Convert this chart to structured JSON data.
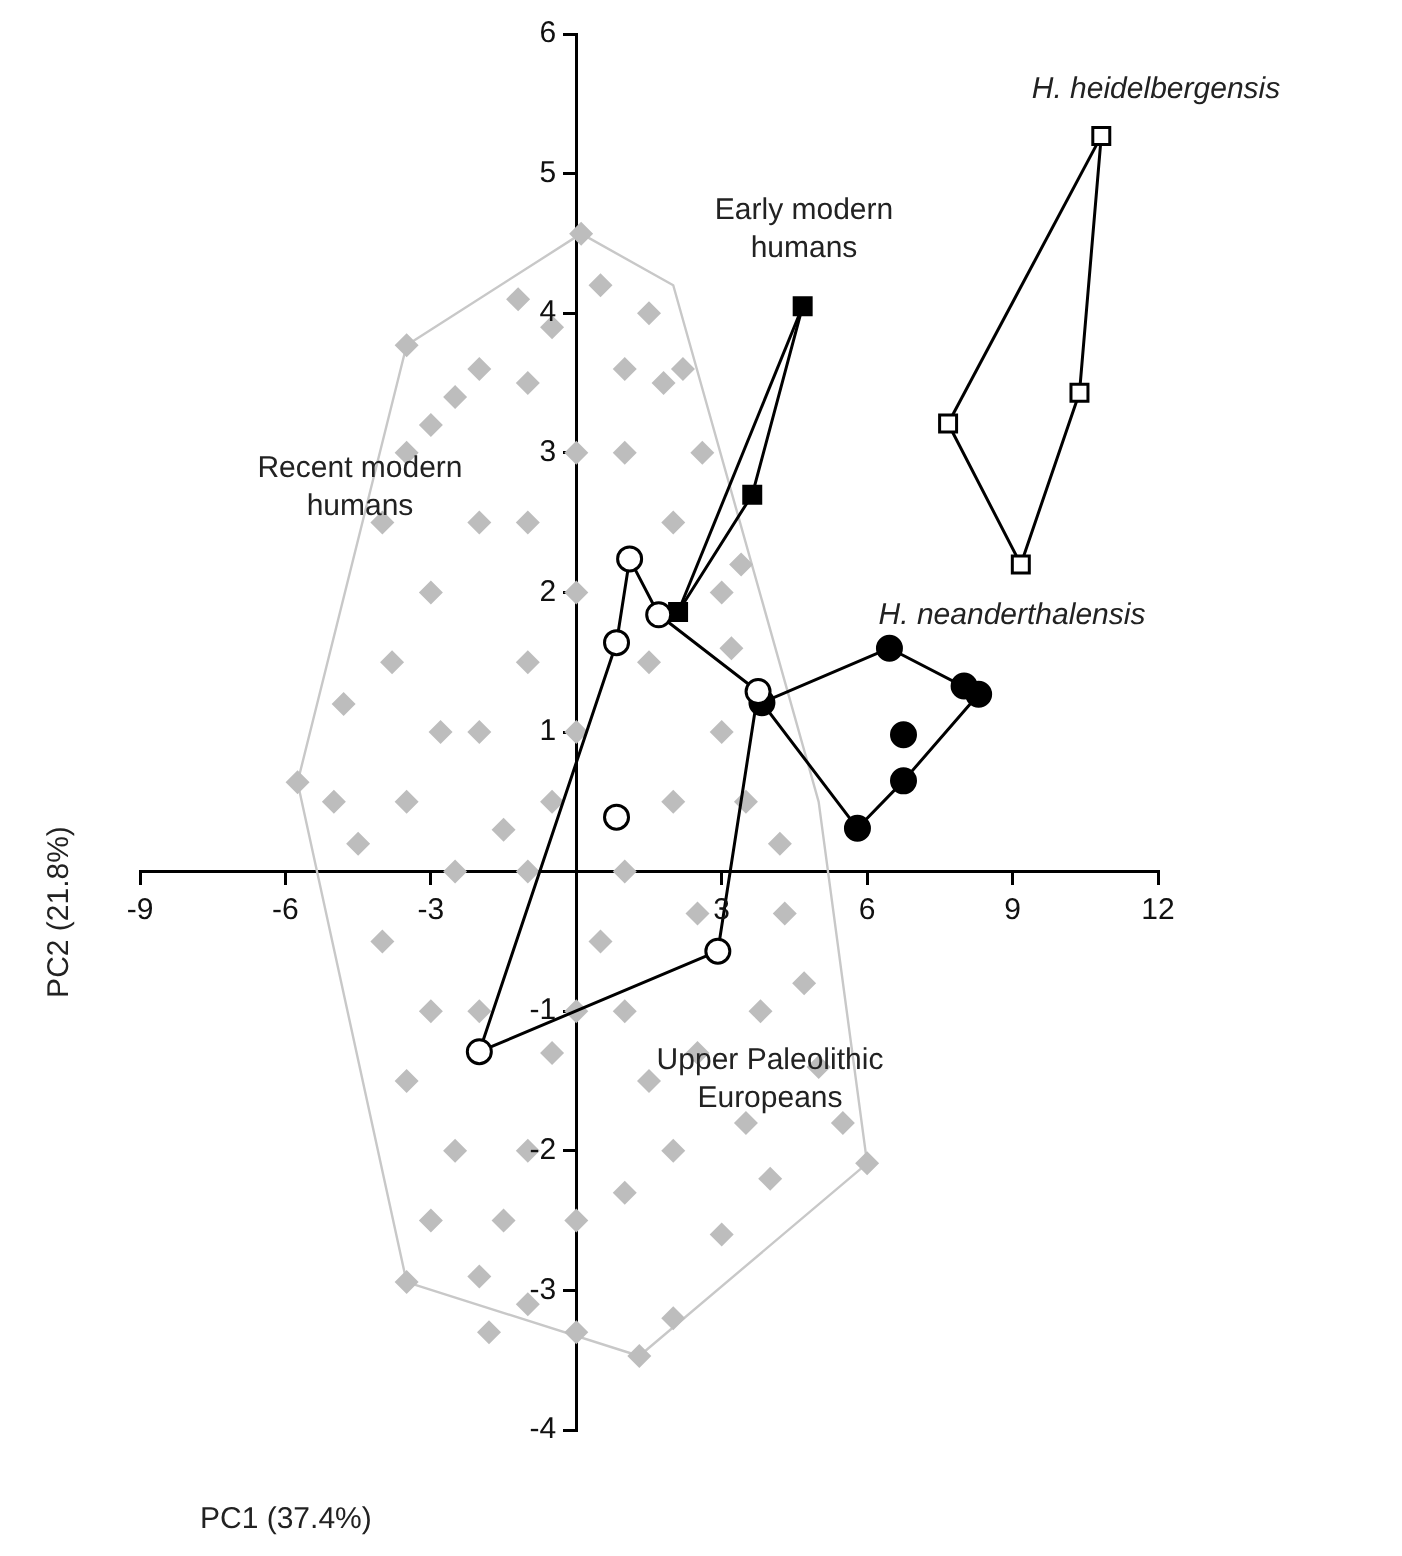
{
  "chart_data": {
    "type": "scatter",
    "xlabel": "PC1 (37.4%)",
    "ylabel": "PC2 (21.8%)",
    "xlim": [
      -9,
      12
    ],
    "xticks": [
      -9,
      -6,
      -3,
      3,
      6,
      9,
      12
    ],
    "ylim": [
      -4,
      6
    ],
    "yticks": [
      -4,
      -3,
      -2,
      -1,
      1,
      2,
      3,
      4,
      5,
      6
    ],
    "grid": false,
    "legend": false,
    "series": [
      {
        "type": "line",
        "color": "#c8c8c8",
        "x": [
          -5.75,
          -3.5,
          0.1,
          2,
          5,
          6
        ],
        "values": [
          0.64,
          3.77,
          4.57,
          4.2,
          0.5,
          -2.09
        ]
      },
      {
        "type": "line",
        "color": "#c8c8c8",
        "x": [
          -5.75,
          -3.5,
          1.3,
          6
        ],
        "values": [
          0.64,
          -2.94,
          -3.47,
          -2.09
        ]
      },
      {
        "type": "scatter",
        "color": "#bdbdbd",
        "marker": "diamond",
        "x": [
          0.1,
          -3.5,
          -5.75,
          -3.5,
          1.3,
          6,
          -1.2,
          -2.5,
          -2,
          -3,
          1.5,
          2.2,
          2.6,
          3.4,
          3.5,
          4.3,
          4.7,
          5,
          5.5,
          4,
          3,
          2,
          0,
          -1,
          -2,
          -3,
          -2.5,
          -3.5,
          -4,
          -4.5,
          -5,
          -3.5,
          -3.8,
          -4,
          -3,
          -2,
          -1,
          -2,
          -1,
          0,
          1,
          2,
          1,
          2,
          3,
          0,
          -1,
          -2,
          -1,
          0,
          1,
          0,
          -1,
          1,
          2,
          3,
          -2.5,
          -3,
          0,
          1,
          2.5,
          3.5,
          -1.5,
          -0.5,
          0.5,
          1.5,
          2.5,
          -3.5,
          -2.8,
          -1.5,
          -0.5,
          1.5,
          3.8,
          4.2,
          -4.8,
          0.5,
          -0.5,
          1.8,
          3.2,
          -1.8
        ],
        "values": [
          4.57,
          3.77,
          0.64,
          -2.94,
          -3.47,
          -2.09,
          4.1,
          3.4,
          3.6,
          3.2,
          4.0,
          3.6,
          3.0,
          2.2,
          0.5,
          -0.3,
          -0.8,
          -1.4,
          -1.8,
          -2.2,
          -2.6,
          -3.2,
          -3.3,
          -3.1,
          -2.9,
          -2.5,
          -2.0,
          -1.5,
          -0.5,
          0.2,
          0.5,
          0.5,
          1.5,
          2.5,
          2,
          1,
          0,
          -1,
          -2,
          -1,
          -1,
          -2,
          0,
          0.5,
          1,
          1,
          1.5,
          2.5,
          2.5,
          2,
          3,
          3,
          3.5,
          3.6,
          2.5,
          2.0,
          0,
          -1,
          -2.5,
          -2.3,
          -1.3,
          -1.8,
          -2.5,
          0.5,
          -0.5,
          1.5,
          -0.3,
          3.0,
          1.0,
          0.3,
          -1.3,
          -1.5,
          -1.0,
          0.2,
          1.2,
          4.2,
          3.9,
          3.5,
          1.6,
          -3.3
        ]
      },
      {
        "type": "line",
        "color": "#000000",
        "x": [
          -2,
          0.83,
          1.1,
          1.7,
          3.75
        ],
        "values": [
          -1.29,
          1.64,
          2.24,
          1.84,
          1.29
        ]
      },
      {
        "type": "line",
        "color": "#000000",
        "x": [
          -2,
          2.92,
          3.75
        ],
        "values": [
          -1.29,
          -0.57,
          1.29
        ]
      },
      {
        "type": "line",
        "color": "#000000",
        "x": [
          2.1,
          4.67
        ],
        "values": [
          1.86,
          4.05
        ]
      },
      {
        "type": "line",
        "color": "#000000",
        "x": [
          2.1,
          3.63,
          4.67
        ],
        "values": [
          1.86,
          2.7,
          4.05
        ]
      },
      {
        "type": "line",
        "color": "#000000",
        "x": [
          7.67,
          10.83
        ],
        "values": [
          3.21,
          5.27
        ]
      },
      {
        "type": "line",
        "color": "#000000",
        "x": [
          7.67,
          9.17,
          10.38,
          10.83
        ],
        "values": [
          3.21,
          2.2,
          3.43,
          5.27
        ]
      },
      {
        "type": "line",
        "color": "#000000",
        "x": [
          3.83,
          6.46,
          8.3
        ],
        "values": [
          1.21,
          1.6,
          1.27
        ]
      },
      {
        "type": "line",
        "color": "#000000",
        "x": [
          3.83,
          5.8,
          6.75,
          8.3
        ],
        "values": [
          1.21,
          0.31,
          0.65,
          1.27
        ]
      },
      {
        "type": "scatter",
        "color": "#000000",
        "marker": "square",
        "x": [
          2.1,
          4.67,
          3.63
        ],
        "values": [
          1.86,
          4.05,
          2.7
        ]
      },
      {
        "type": "scatter",
        "color": "#ffffff",
        "marker": "square",
        "x": [
          10.83,
          7.67,
          10.38,
          9.17
        ],
        "values": [
          5.27,
          3.21,
          3.43,
          2.2
        ]
      },
      {
        "type": "scatter",
        "color": "#000000",
        "marker": "circle",
        "x": [
          6.46,
          8.0,
          8.3,
          6.75,
          6.75,
          5.8,
          3.83
        ],
        "values": [
          1.6,
          1.33,
          1.27,
          0.98,
          0.65,
          0.31,
          1.21
        ]
      },
      {
        "type": "scatter",
        "color": "#ffffff",
        "marker": "circle",
        "x": [
          1.1,
          0.83,
          1.7,
          0.83,
          -2,
          2.92,
          3.75
        ],
        "values": [
          2.24,
          1.64,
          1.84,
          0.39,
          -1.29,
          -0.57,
          1.29
        ]
      }
    ],
    "annotations": [
      "Recent modern\nhumans",
      "Early modern\nhumans",
      "H. heidelbergensis",
      "H. neanderthalensis",
      "Upper Paleolithic\nEuropeans"
    ]
  }
}
